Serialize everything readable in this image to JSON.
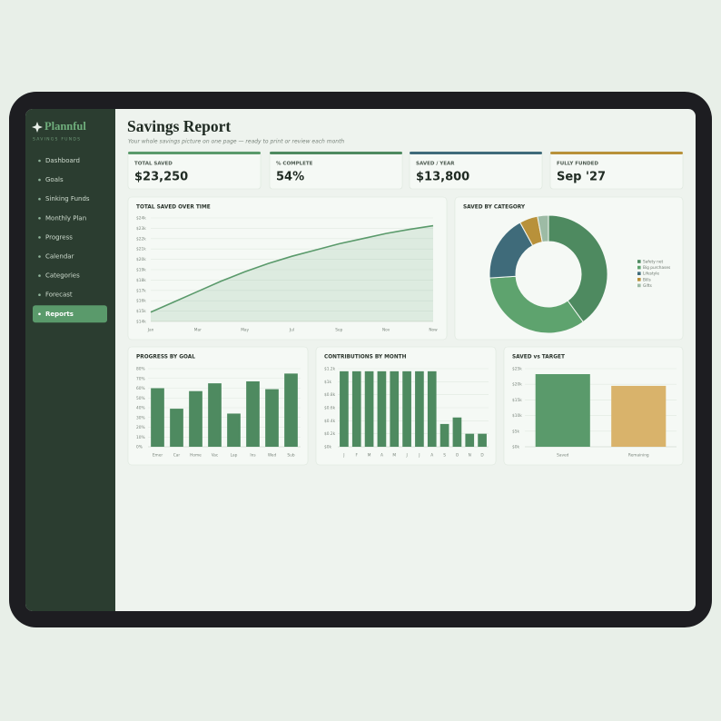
{
  "sidebar": {
    "brand": "Plannful",
    "tagline": "SAVINGS FUNDS",
    "nav": [
      "Dashboard",
      "Goals",
      "Sinking Funds",
      "Monthly Plan",
      "Progress",
      "Calendar",
      "Categories",
      "Forecast",
      "Reports"
    ],
    "active_index": 8
  },
  "header": {
    "title": "Savings Report",
    "subtitle": "Your whole savings picture on one page — ready to print or review each month"
  },
  "kpis": [
    {
      "label": "TOTAL SAVED",
      "value": "$23,250",
      "color": "#5a9a6b"
    },
    {
      "label": "% COMPLETE",
      "value": "54%",
      "color": "#4e8a60"
    },
    {
      "label": "SAVED / YEAR",
      "value": "$13,800",
      "color": "#3f6b7a"
    },
    {
      "label": "FULLY FUNDED",
      "value": "Sep '27",
      "color": "#b8913a"
    }
  ],
  "chart_data": [
    {
      "type": "line",
      "title": "TOTAL SAVED OVER TIME",
      "categories": [
        "Jan",
        null,
        "Mar",
        null,
        "May",
        null,
        "Jul",
        null,
        "Sep",
        null,
        "Nov",
        null,
        "Now"
      ],
      "values": [
        14900,
        15900,
        16900,
        17900,
        18800,
        19600,
        20300,
        20900,
        21500,
        22000,
        22500,
        22900,
        23250
      ],
      "color": "#5a9a6b",
      "ylim": [
        14000,
        24000
      ],
      "yticks": [
        {
          "value": 14000,
          "label": "$14k"
        },
        {
          "value": 15000,
          "label": "$15k"
        },
        {
          "value": 16000,
          "label": "$16k"
        },
        {
          "value": 17000,
          "label": "$17k"
        },
        {
          "value": 18000,
          "label": "$18k"
        },
        {
          "value": 19000,
          "label": "$19k"
        },
        {
          "value": 20000,
          "label": "$20k"
        },
        {
          "value": 21000,
          "label": "$21k"
        },
        {
          "value": 22000,
          "label": "$22k"
        },
        {
          "value": 23000,
          "label": "$23k"
        },
        {
          "value": 24000,
          "label": "$24k"
        }
      ],
      "grid": true
    },
    {
      "type": "donut",
      "title": "SAVED BY CATEGORY",
      "categories": [
        "Safety net",
        "Big purchases",
        "Lifestyle",
        "Bills",
        "Gifts"
      ],
      "values": [
        40,
        34,
        18,
        5,
        3
      ],
      "colors": [
        "#4e8a60",
        "#5ea36e",
        "#3f6b7a",
        "#b8913a",
        "#9dbba5"
      ],
      "legend": "right"
    },
    {
      "type": "bar",
      "title": "PROGRESS BY GOAL",
      "categories": [
        "Emer",
        "Car",
        "Home",
        "Vac",
        "Lap",
        "Ins",
        "Wed",
        "Sub"
      ],
      "values": [
        60,
        39,
        57,
        65,
        34,
        67,
        59,
        75
      ],
      "color": "#4e8a60",
      "ylim": [
        0,
        80
      ],
      "yticks": [
        {
          "value": 0,
          "label": "0%"
        },
        {
          "value": 10,
          "label": "10%"
        },
        {
          "value": 20,
          "label": "20%"
        },
        {
          "value": 30,
          "label": "30%"
        },
        {
          "value": 40,
          "label": "40%"
        },
        {
          "value": 50,
          "label": "50%"
        },
        {
          "value": 60,
          "label": "60%"
        },
        {
          "value": 70,
          "label": "70%"
        },
        {
          "value": 80,
          "label": "80%"
        }
      ],
      "grid": true
    },
    {
      "type": "bar",
      "title": "CONTRIBUTIONS BY MONTH",
      "categories": [
        "J",
        "F",
        "M",
        "A",
        "M",
        "J",
        "J",
        "A",
        "S",
        "O",
        "N",
        "D"
      ],
      "values": [
        1160,
        1160,
        1160,
        1160,
        1160,
        1160,
        1160,
        1160,
        350,
        450,
        200,
        200
      ],
      "color": "#4e8a60",
      "ylim": [
        0,
        1200
      ],
      "yticks": [
        {
          "value": 0,
          "label": "$0k"
        },
        {
          "value": 200,
          "label": "$0.2k"
        },
        {
          "value": 400,
          "label": "$0.4k"
        },
        {
          "value": 600,
          "label": "$0.6k"
        },
        {
          "value": 800,
          "label": "$0.8k"
        },
        {
          "value": 1000,
          "label": "$1k"
        },
        {
          "value": 1200,
          "label": "$1.2k"
        }
      ],
      "grid": true
    },
    {
      "type": "bar",
      "title": "SAVED vs TARGET",
      "categories": [
        "Saved",
        "Remaining"
      ],
      "values": [
        23250,
        19500
      ],
      "colors": [
        "#5a9a6b",
        "#d9b36b"
      ],
      "ylim": [
        0,
        25000
      ],
      "yticks": [
        {
          "value": 0,
          "label": "$0k"
        },
        {
          "value": 5000,
          "label": "$5k"
        },
        {
          "value": 10000,
          "label": "$10k"
        },
        {
          "value": 15000,
          "label": "$15k"
        },
        {
          "value": 20000,
          "label": "$20k"
        },
        {
          "value": 25000,
          "label": "$25k"
        }
      ],
      "grid": true
    }
  ]
}
